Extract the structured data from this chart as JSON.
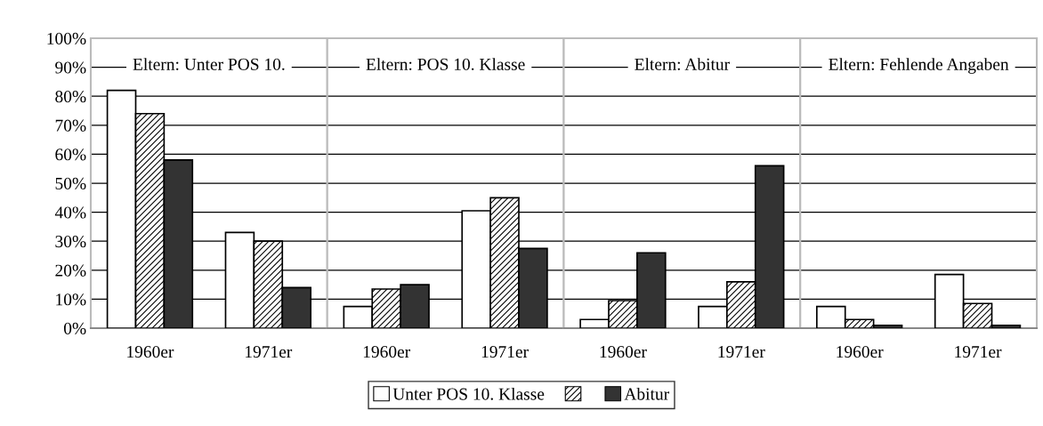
{
  "chart_data": [
    {
      "type": "bar",
      "title": "Eltern: Unter POS 10.",
      "categories": [
        "1960er",
        "1971er"
      ],
      "ylim": [
        0,
        100
      ],
      "yticks": [
        {
          "value": 0,
          "label": "0%"
        },
        {
          "value": 10,
          "label": "10%"
        },
        {
          "value": 20,
          "label": "20%"
        },
        {
          "value": 30,
          "label": "30%"
        },
        {
          "value": 40,
          "label": "40%"
        },
        {
          "value": 50,
          "label": "50%"
        },
        {
          "value": 60,
          "label": "60%"
        },
        {
          "value": 70,
          "label": "70%"
        },
        {
          "value": 80,
          "label": "80%"
        },
        {
          "value": 90,
          "label": "90%"
        },
        {
          "value": 100,
          "label": "100%"
        }
      ],
      "grid": "y",
      "legend": "bottom",
      "series": [
        {
          "name": "Unter POS 10. Klasse",
          "color": "#ffffff",
          "values": [
            82,
            33
          ]
        },
        {
          "color": "#000000",
          "values": [
            74,
            30
          ]
        },
        {
          "name": "Abitur",
          "color": "#333333",
          "values": [
            58,
            14
          ]
        }
      ]
    },
    {
      "type": "bar",
      "title": "Eltern: POS 10. Klasse",
      "categories": [
        "1960er",
        "1971er"
      ],
      "ylim": [
        0,
        100
      ],
      "yticks": [
        {
          "value": 0,
          "label": null
        },
        {
          "value": 10,
          "label": null
        },
        {
          "value": 20,
          "label": null
        },
        {
          "value": 30,
          "label": null
        },
        {
          "value": 40,
          "label": null
        },
        {
          "value": 50,
          "label": null
        },
        {
          "value": 60,
          "label": null
        },
        {
          "value": 70,
          "label": null
        },
        {
          "value": 80,
          "label": null
        },
        {
          "value": 90,
          "label": null
        },
        {
          "value": 100,
          "label": null
        }
      ],
      "grid": "y",
      "tick_labels": "x",
      "series": [
        {
          "color": "#ffffff",
          "values": [
            7.5,
            40.5
          ]
        },
        {
          "color": "#000000",
          "values": [
            13.5,
            45
          ]
        },
        {
          "color": "#333333",
          "values": [
            15,
            27.5
          ]
        }
      ]
    },
    {
      "type": "bar",
      "title": "Eltern: Abitur",
      "categories": [
        "1960er",
        "1971er"
      ],
      "ylim": [
        0,
        100
      ],
      "yticks": [
        {
          "value": 0,
          "label": null
        },
        {
          "value": 10,
          "label": null
        },
        {
          "value": 20,
          "label": null
        },
        {
          "value": 30,
          "label": null
        },
        {
          "value": 40,
          "label": null
        },
        {
          "value": 50,
          "label": null
        },
        {
          "value": 60,
          "label": null
        },
        {
          "value": 70,
          "label": null
        },
        {
          "value": 80,
          "label": null
        },
        {
          "value": 90,
          "label": null
        },
        {
          "value": 100,
          "label": null
        }
      ],
      "grid": "y",
      "tick_labels": "x",
      "series": [
        {
          "color": "#ffffff",
          "values": [
            3,
            7.5
          ]
        },
        {
          "color": "#000000",
          "values": [
            9.5,
            16
          ]
        },
        {
          "color": "#333333",
          "values": [
            26,
            56
          ]
        }
      ]
    },
    {
      "type": "bar",
      "title": "Eltern: Fehlende Angaben",
      "categories": [
        "1960er",
        "1971er"
      ],
      "ylim": [
        0,
        100
      ],
      "yticks": [
        {
          "value": 0,
          "label": null
        },
        {
          "value": 10,
          "label": null
        },
        {
          "value": 20,
          "label": null
        },
        {
          "value": 30,
          "label": null
        },
        {
          "value": 40,
          "label": null
        },
        {
          "value": 50,
          "label": null
        },
        {
          "value": 60,
          "label": null
        },
        {
          "value": 70,
          "label": null
        },
        {
          "value": 80,
          "label": null
        },
        {
          "value": 90,
          "label": null
        },
        {
          "value": 100,
          "label": null
        }
      ],
      "grid": "y",
      "tick_labels": "x",
      "series": [
        {
          "color": "#ffffff",
          "values": [
            7.5,
            18.5
          ]
        },
        {
          "color": "#000000",
          "values": [
            3,
            8.5
          ]
        },
        {
          "color": "#333333",
          "values": [
            1,
            1
          ]
        }
      ]
    }
  ]
}
